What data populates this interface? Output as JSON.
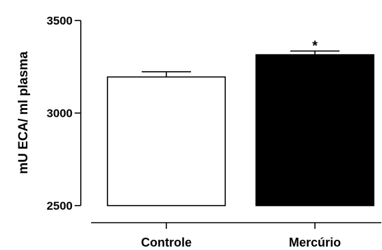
{
  "chart_data": {
    "type": "bar",
    "categories": [
      "Controle",
      "Mercúrio"
    ],
    "values": [
      3195,
      3315
    ],
    "errors": [
      28,
      20
    ],
    "bar_colors": [
      "#ffffff",
      "#000000"
    ],
    "annotations": [
      "",
      "*"
    ],
    "ylabel": "mU ECA/ ml plasma",
    "xlabel": "",
    "title": "",
    "ylim": [
      2500,
      3500
    ],
    "yticks": [
      2500,
      3000,
      3500
    ],
    "grid": false
  }
}
